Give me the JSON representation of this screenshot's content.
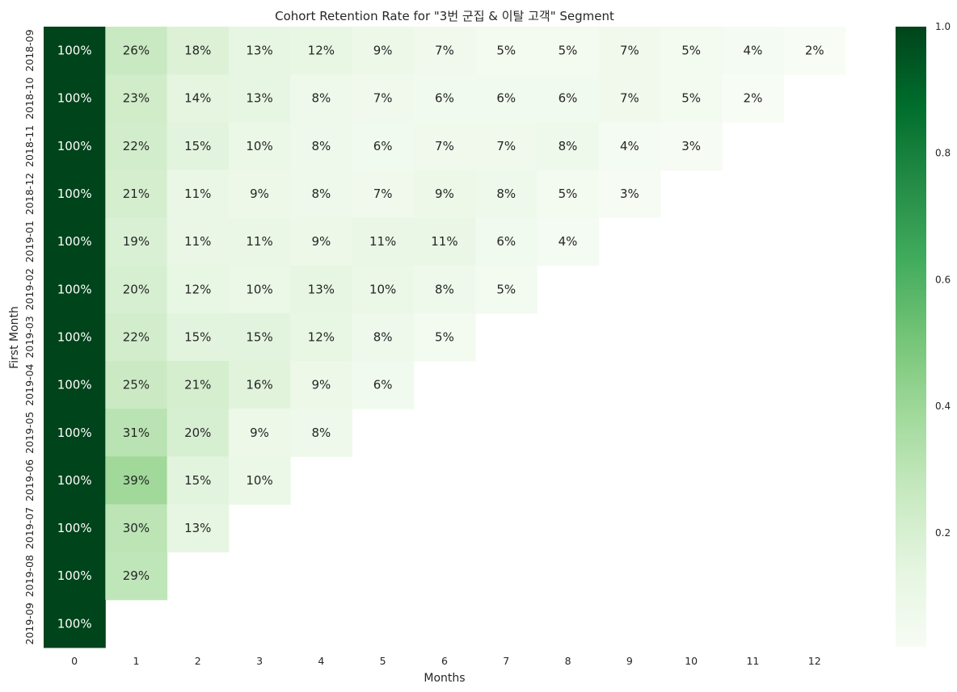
{
  "chart_data": {
    "type": "heatmap",
    "title": "Cohort Retention Rate for \"3번 군집 & 이탈 고객\" Segment",
    "xlabel": "Months",
    "ylabel": "First Month",
    "x_categories": [
      "0",
      "1",
      "2",
      "3",
      "4",
      "5",
      "6",
      "7",
      "8",
      "9",
      "10",
      "11",
      "12"
    ],
    "y_categories": [
      "2018-09",
      "2018-10",
      "2018-11",
      "2018-12",
      "2019-01",
      "2019-02",
      "2019-03",
      "2019-04",
      "2019-05",
      "2019-06",
      "2019-07",
      "2019-08",
      "2019-09"
    ],
    "values": [
      [
        1.0,
        0.26,
        0.18,
        0.13,
        0.12,
        0.09,
        0.07,
        0.05,
        0.05,
        0.07,
        0.05,
        0.04,
        0.02
      ],
      [
        1.0,
        0.23,
        0.14,
        0.13,
        0.08,
        0.07,
        0.06,
        0.06,
        0.06,
        0.07,
        0.05,
        0.02
      ],
      [
        1.0,
        0.22,
        0.15,
        0.1,
        0.08,
        0.06,
        0.07,
        0.07,
        0.08,
        0.04,
        0.03
      ],
      [
        1.0,
        0.21,
        0.11,
        0.09,
        0.08,
        0.07,
        0.09,
        0.08,
        0.05,
        0.03
      ],
      [
        1.0,
        0.19,
        0.11,
        0.11,
        0.09,
        0.11,
        0.11,
        0.06,
        0.04
      ],
      [
        1.0,
        0.2,
        0.12,
        0.1,
        0.13,
        0.1,
        0.08,
        0.05
      ],
      [
        1.0,
        0.22,
        0.15,
        0.15,
        0.12,
        0.08,
        0.05
      ],
      [
        1.0,
        0.25,
        0.21,
        0.16,
        0.09,
        0.06
      ],
      [
        1.0,
        0.31,
        0.2,
        0.09,
        0.08
      ],
      [
        1.0,
        0.39,
        0.15,
        0.1
      ],
      [
        1.0,
        0.3,
        0.13
      ],
      [
        1.0,
        0.29
      ],
      [
        1.0
      ]
    ],
    "labels": [
      [
        "100%",
        "26%",
        "18%",
        "13%",
        "12%",
        "9%",
        "7%",
        "5%",
        "5%",
        "7%",
        "5%",
        "4%",
        "2%"
      ],
      [
        "100%",
        "23%",
        "14%",
        "13%",
        "8%",
        "7%",
        "6%",
        "6%",
        "6%",
        "7%",
        "5%",
        "2%"
      ],
      [
        "100%",
        "22%",
        "15%",
        "10%",
        "8%",
        "6%",
        "7%",
        "7%",
        "8%",
        "4%",
        "3%"
      ],
      [
        "100%",
        "21%",
        "11%",
        "9%",
        "8%",
        "7%",
        "9%",
        "8%",
        "5%",
        "3%"
      ],
      [
        "100%",
        "19%",
        "11%",
        "11%",
        "9%",
        "11%",
        "11%",
        "6%",
        "4%"
      ],
      [
        "100%",
        "20%",
        "12%",
        "10%",
        "13%",
        "10%",
        "8%",
        "5%"
      ],
      [
        "100%",
        "22%",
        "15%",
        "15%",
        "12%",
        "8%",
        "5%"
      ],
      [
        "100%",
        "25%",
        "21%",
        "16%",
        "9%",
        "6%"
      ],
      [
        "100%",
        "31%",
        "20%",
        "9%",
        "8%"
      ],
      [
        "100%",
        "39%",
        "15%",
        "10%"
      ],
      [
        "100%",
        "30%",
        "13%"
      ],
      [
        "100%",
        "29%"
      ],
      [
        "100%"
      ]
    ],
    "colormap": "Greens",
    "colorbar_ticks": [
      "0.2",
      "0.4",
      "0.6",
      "0.8",
      "1.0"
    ],
    "colorbar_range": [
      0.02,
      1.0
    ],
    "grid": false
  }
}
